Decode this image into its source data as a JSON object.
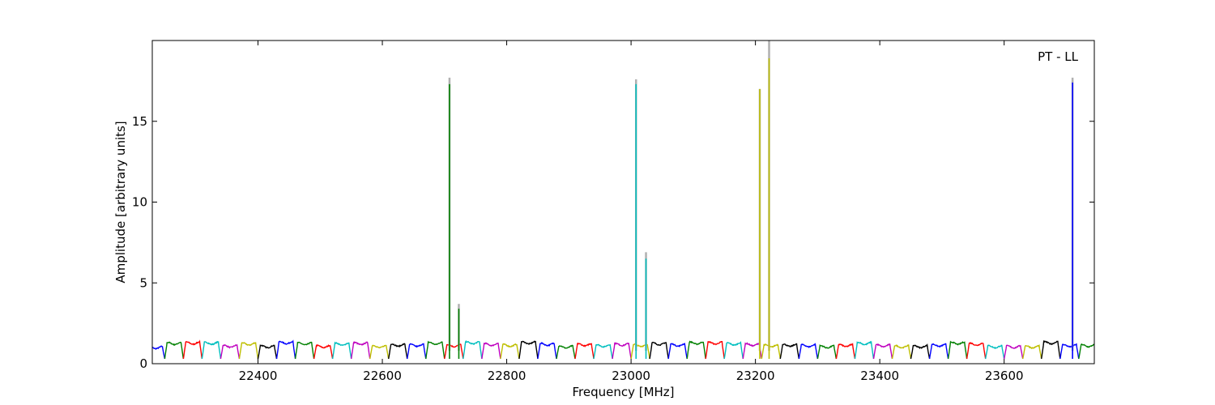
{
  "chart_data": {
    "type": "line",
    "title": "",
    "annotation": "PT - LL",
    "xlabel": "Frequency [MHz]",
    "ylabel": "Amplitude [arbitrary units]",
    "xlim": [
      22230,
      23745
    ],
    "ylim": [
      0,
      20
    ],
    "xticks": [
      22400,
      22600,
      22800,
      23000,
      23200,
      23400,
      23600
    ],
    "yticks": [
      0,
      5,
      10,
      15
    ],
    "grid": false,
    "baseline": {
      "description_level": "repeating bandpass segments of ~30 MHz each, level ~1.0-1.4 with dips to ~0.3 at segment edges",
      "segment_width_mhz": 30,
      "colors_cycle": [
        "#0000ff",
        "#008000",
        "#ff0000",
        "#00bfbf",
        "#bf00bf",
        "#bfbf00",
        "#000000"
      ],
      "start": 22230,
      "end": 23745
    },
    "spikes": [
      {
        "x": 22708,
        "y": 17.3,
        "envelope": 17.7,
        "color": "#008000"
      },
      {
        "x": 22723,
        "y": 3.4,
        "envelope": 3.7,
        "color": "#008000"
      },
      {
        "x": 23008,
        "y": 17.3,
        "envelope": 17.6,
        "color": "#00bfbf"
      },
      {
        "x": 23024,
        "y": 6.5,
        "envelope": 6.9,
        "color": "#00bfbf"
      },
      {
        "x": 23207,
        "y": 17.0,
        "envelope": 17.0,
        "color": "#bfbf00"
      },
      {
        "x": 23222,
        "y": 18.9,
        "envelope": 20.0,
        "color": "#bfbf00"
      },
      {
        "x": 23710,
        "y": 17.4,
        "envelope": 17.7,
        "color": "#0000ff"
      }
    ],
    "envelope_color": "#b0b0b0"
  }
}
